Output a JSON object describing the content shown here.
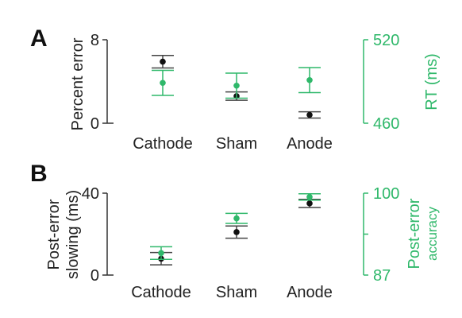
{
  "colors": {
    "black_series": "#111111",
    "green_series": "#2fb86a",
    "green_axis": "#2fb86a"
  },
  "chart_data": [
    {
      "panel": "A",
      "type": "scatter",
      "categories": [
        "Cathode",
        "Sham",
        "Anode"
      ],
      "left_axis": {
        "label": "Percent error",
        "ylim": [
          0,
          8
        ],
        "ticks": [
          "0",
          "8"
        ]
      },
      "right_axis": {
        "label": "RT (ms)",
        "ylim": [
          460,
          520
        ],
        "ticks": [
          "460",
          "520"
        ]
      },
      "series": [
        {
          "axis": "left",
          "color": "black",
          "values": [
            5.9,
            2.6,
            0.8
          ],
          "err": [
            0.6,
            0.4,
            0.3
          ]
        },
        {
          "axis": "right",
          "color": "green",
          "values": [
            489,
            487,
            491
          ],
          "err": [
            9,
            9,
            9
          ]
        }
      ]
    },
    {
      "panel": "B",
      "type": "scatter",
      "categories": [
        "Cathode",
        "Sham",
        "Anode"
      ],
      "left_axis": {
        "label_line1": "Post-error",
        "label_line2": "slowing (ms)",
        "ylim": [
          0,
          40
        ],
        "ticks": [
          "0",
          "40"
        ]
      },
      "right_axis": {
        "label_line1": "Post-error",
        "label_line2": "accuracy",
        "ylim": [
          87,
          100
        ],
        "ticks": [
          "87",
          "100"
        ]
      },
      "series": [
        {
          "axis": "left",
          "color": "black",
          "values": [
            8,
            21,
            35
          ],
          "err": [
            3,
            3,
            2
          ]
        },
        {
          "axis": "right",
          "color": "green",
          "values": [
            90.5,
            96,
            99.4
          ],
          "err": [
            1,
            0.8,
            0.5
          ]
        }
      ]
    }
  ]
}
